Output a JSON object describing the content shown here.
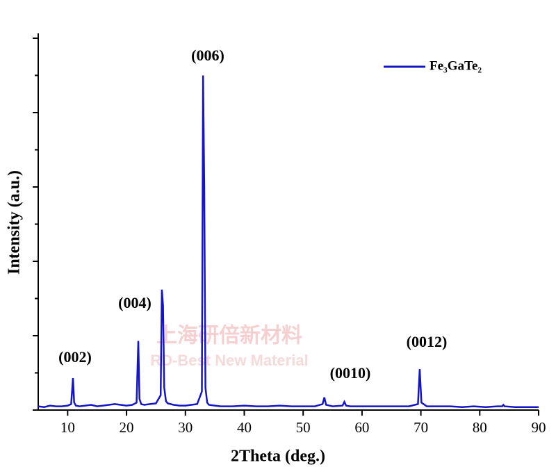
{
  "chart_data": {
    "type": "line",
    "xlabel": "2Theta (deg.)",
    "ylabel": "Intensity (a.u.)",
    "xlim": [
      5,
      90
    ],
    "xticks": [
      10,
      20,
      30,
      40,
      50,
      60,
      70,
      80,
      90
    ],
    "ylim": [
      0,
      5
    ],
    "yticks": [
      0,
      0.5,
      1,
      1.5,
      2,
      2.5,
      3,
      3.5,
      4,
      4.5,
      5
    ],
    "legend": "upper right",
    "x": [
      5,
      6,
      7,
      8,
      9,
      10,
      10.6,
      10.9,
      11.1,
      11.4,
      12,
      13,
      14,
      15,
      16,
      17,
      18,
      19,
      20,
      21,
      21.7,
      22.0,
      22.2,
      22.5,
      23,
      24,
      25,
      25.8,
      26.0,
      26.2,
      26.4,
      26.7,
      27,
      28,
      29,
      30,
      31,
      32,
      32.8,
      33.0,
      33.2,
      33.4,
      33.7,
      34,
      35,
      36,
      38,
      40,
      42,
      44,
      46,
      48,
      50,
      52,
      53.3,
      53.6,
      53.9,
      55,
      56.7,
      57.0,
      57.3,
      58,
      60,
      62,
      64,
      66,
      68,
      69.5,
      69.8,
      70.1,
      71,
      73,
      75,
      77,
      79,
      81,
      83,
      83.8,
      84.0,
      84.2,
      86,
      88,
      90
    ],
    "series": [
      {
        "name": "Fe₃GaTe₂",
        "color": "#1414c8",
        "values": [
          0.05,
          0.04,
          0.06,
          0.05,
          0.05,
          0.06,
          0.08,
          0.43,
          0.1,
          0.06,
          0.05,
          0.06,
          0.07,
          0.05,
          0.06,
          0.07,
          0.08,
          0.07,
          0.06,
          0.07,
          0.1,
          0.93,
          0.15,
          0.08,
          0.07,
          0.08,
          0.09,
          0.2,
          1.62,
          1.4,
          0.3,
          0.12,
          0.09,
          0.07,
          0.06,
          0.06,
          0.07,
          0.08,
          0.25,
          4.5,
          3.0,
          0.3,
          0.1,
          0.07,
          0.06,
          0.05,
          0.05,
          0.06,
          0.05,
          0.05,
          0.06,
          0.05,
          0.05,
          0.05,
          0.08,
          0.17,
          0.07,
          0.05,
          0.06,
          0.11,
          0.06,
          0.05,
          0.05,
          0.05,
          0.05,
          0.05,
          0.05,
          0.08,
          0.55,
          0.1,
          0.05,
          0.05,
          0.05,
          0.04,
          0.05,
          0.04,
          0.05,
          0.05,
          0.07,
          0.05,
          0.04,
          0.04,
          0.04
        ]
      }
    ],
    "annotations": [
      "(002)",
      "(004)",
      "(006)",
      "(0010)",
      "(0012)"
    ],
    "watermark": [
      "上海研倍新材料",
      "RD-Best New Material"
    ]
  }
}
